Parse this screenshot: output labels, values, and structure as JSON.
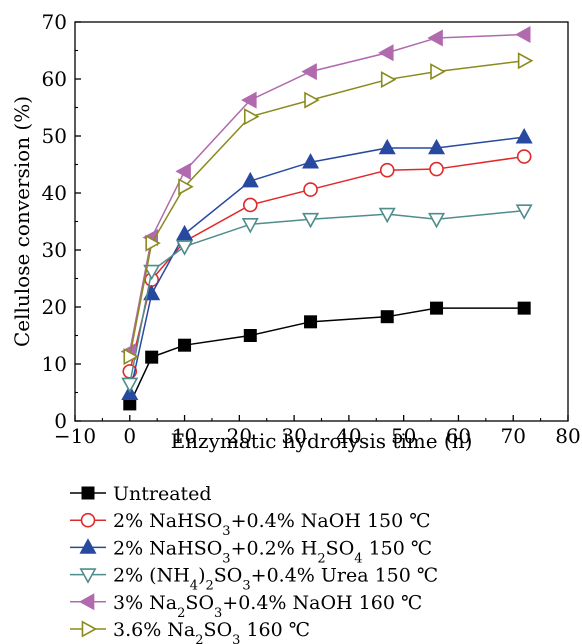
{
  "chart_data": {
    "type": "line",
    "xlabel": "Enzymatic hydrolysis time (h)",
    "ylabel": "Cellulose conversion (%)",
    "xlim": [
      -10,
      80
    ],
    "ylim": [
      0,
      70
    ],
    "xticks": [
      -10,
      0,
      10,
      20,
      30,
      40,
      50,
      60,
      70,
      80
    ],
    "yticks": [
      0,
      10,
      20,
      30,
      40,
      50,
      60,
      70
    ],
    "xtick_labels": [
      "−10",
      "0",
      "10",
      "20",
      "30",
      "40",
      "50",
      "60",
      "70",
      "80"
    ],
    "ytick_labels": [
      "0",
      "10",
      "20",
      "30",
      "40",
      "50",
      "60",
      "70"
    ],
    "grid": false,
    "legend_position": "below",
    "x": [
      0,
      4,
      10,
      22,
      33,
      47,
      56,
      72
    ],
    "series": [
      {
        "name": "Untreated",
        "marker": "filled-square",
        "color": "#000000",
        "values": [
          3.0,
          11.2,
          13.3,
          15.0,
          17.4,
          18.3,
          19.8,
          19.8
        ]
      },
      {
        "name": "2% NaHSO3+0.4% NaOH 150 ℃",
        "marker": "open-circle",
        "color": "#e0292b",
        "values": [
          8.7,
          24.8,
          31.5,
          37.9,
          40.6,
          44.0,
          44.2,
          46.4
        ]
      },
      {
        "name": "2% NaHSO3+0.2% H2SO4 150 ℃",
        "marker": "filled-triangle-up",
        "color": "#2749a0",
        "values": [
          4.8,
          22.3,
          32.8,
          42.1,
          45.4,
          47.9,
          47.9,
          49.8
        ]
      },
      {
        "name": "2% (NH4)2SO3+0.4% Urea 150 ℃",
        "marker": "open-triangle-down",
        "color": "#4f8c8c",
        "values": [
          6.5,
          26.3,
          30.6,
          34.5,
          35.4,
          36.3,
          35.4,
          36.9
        ]
      },
      {
        "name": "3% Na2SO3+0.4% NaOH 160 ℃",
        "marker": "filled-triangle-left",
        "color": "#b06aad",
        "values": [
          12.2,
          32.2,
          43.8,
          56.3,
          61.3,
          64.6,
          67.2,
          67.8
        ]
      },
      {
        "name": "3.6% Na2SO3 160 ℃",
        "marker": "open-triangle-right",
        "color": "#8a8a1e",
        "values": [
          11.3,
          31.2,
          41.1,
          53.4,
          56.3,
          59.9,
          61.3,
          63.2
        ]
      }
    ]
  },
  "legend": [
    {
      "parts": [
        [
          "Untreated",
          ""
        ]
      ]
    },
    {
      "parts": [
        [
          "2% NaHSO",
          ""
        ],
        [
          "3",
          "sub"
        ],
        [
          "+0.4% NaOH 150 ℃",
          ""
        ]
      ]
    },
    {
      "parts": [
        [
          "2% NaHSO",
          ""
        ],
        [
          "3",
          "sub"
        ],
        [
          "+0.2% H",
          ""
        ],
        [
          "2",
          "sub"
        ],
        [
          "SO",
          ""
        ],
        [
          "4",
          "sub"
        ],
        [
          " 150 ℃",
          ""
        ]
      ]
    },
    {
      "parts": [
        [
          "2% (NH",
          ""
        ],
        [
          "4",
          "sub"
        ],
        [
          ")",
          ""
        ],
        [
          "2",
          "sub"
        ],
        [
          "SO",
          ""
        ],
        [
          "3",
          "sub"
        ],
        [
          "+0.4% Urea 150 ℃",
          ""
        ]
      ]
    },
    {
      "parts": [
        [
          "3% Na",
          ""
        ],
        [
          "2",
          "sub"
        ],
        [
          "SO",
          ""
        ],
        [
          "3",
          "sub"
        ],
        [
          "+0.4% NaOH 160 ℃",
          ""
        ]
      ]
    },
    {
      "parts": [
        [
          "3.6% Na",
          ""
        ],
        [
          "2",
          "sub"
        ],
        [
          "SO",
          ""
        ],
        [
          "3",
          "sub"
        ],
        [
          " 160 ℃",
          ""
        ]
      ]
    }
  ]
}
